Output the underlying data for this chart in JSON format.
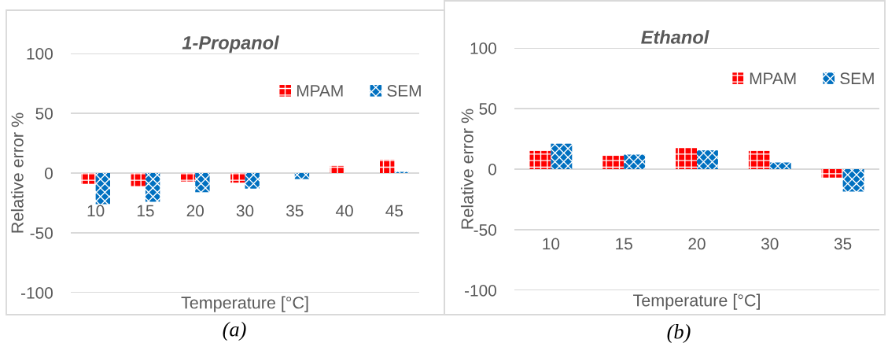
{
  "chart_data": [
    {
      "type": "bar",
      "title": "1-Propanol",
      "xlabel": "Temperature [°C]",
      "ylabel": "Relative error %",
      "categories": [
        "10",
        "15",
        "20",
        "30",
        "35",
        "40",
        "45"
      ],
      "series": [
        {
          "name": "MPAM",
          "color": "#ff0000",
          "values": [
            -9,
            -11,
            -7,
            -8,
            null,
            6,
            11
          ]
        },
        {
          "name": "SEM",
          "color": "#0070c0",
          "values": [
            -26,
            -24,
            -16,
            -13,
            -5,
            null,
            1
          ]
        }
      ],
      "ylim": [
        -100,
        100
      ],
      "yticks": [
        -100,
        -50,
        0,
        50,
        100
      ],
      "grid": "y",
      "legend": "top right",
      "annotations": [
        "(a)"
      ]
    },
    {
      "type": "bar",
      "title": "Ethanol",
      "xlabel": "Temperature [°C]",
      "ylabel": "Relative error %",
      "categories": [
        "10",
        "15",
        "20",
        "30",
        "35"
      ],
      "series": [
        {
          "name": "MPAM",
          "color": "#ff0000",
          "values": [
            15,
            11,
            18,
            15,
            -7
          ]
        },
        {
          "name": "SEM",
          "color": "#0070c0",
          "values": [
            21,
            12,
            15.5,
            5.5,
            -18.5
          ]
        }
      ],
      "ylim": [
        -100,
        100
      ],
      "yticks": [
        -100,
        -50,
        0,
        50,
        100
      ],
      "grid": "y",
      "legend": "top right",
      "annotations": [
        "(b)"
      ]
    }
  ]
}
